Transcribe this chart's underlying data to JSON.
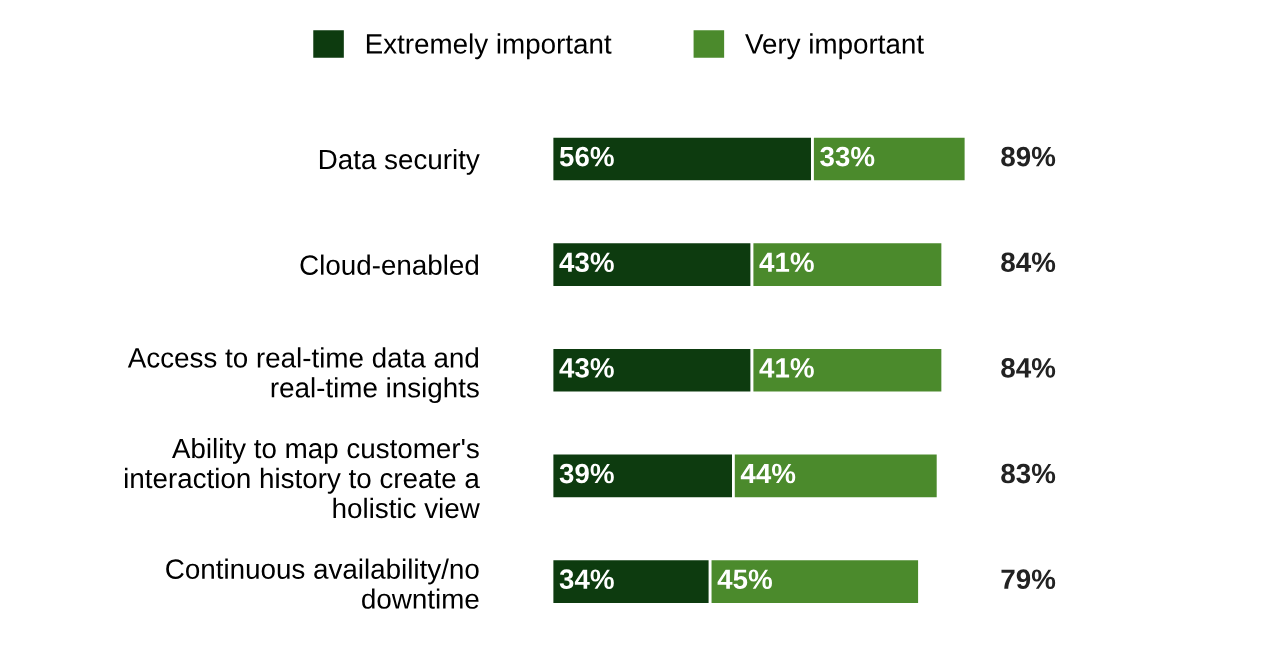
{
  "chart_data": {
    "type": "bar",
    "orientation": "horizontal",
    "stacked": true,
    "legend": "top",
    "categories": [
      "Data security",
      "Cloud-enabled",
      "Access to real-time data and\nreal-time insights",
      "Ability to map customer's\ninteraction history to create a\nholistic view",
      "Continuous availability/no\ndowntime"
    ],
    "series": [
      {
        "name": "Extremely important",
        "color": "#0d3b0f",
        "values": [
          56,
          43,
          43,
          39,
          34
        ],
        "value_labels": [
          "56%",
          "43%",
          "43%",
          "39%",
          "34%"
        ]
      },
      {
        "name": "Very important",
        "color": "#4b8a2c",
        "values": [
          33,
          41,
          41,
          44,
          45
        ],
        "value_labels": [
          "33%",
          "41%",
          "41%",
          "44%",
          "45%"
        ]
      }
    ],
    "totals": [
      "89%",
      "84%",
      "84%",
      "83%",
      "79%"
    ]
  }
}
